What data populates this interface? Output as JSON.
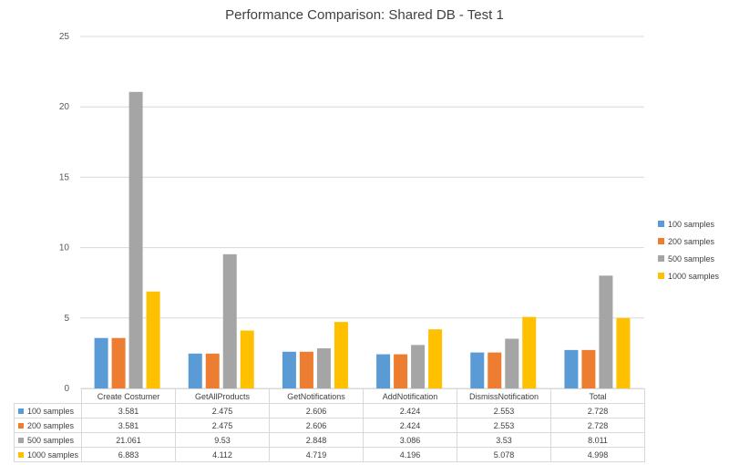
{
  "chart_data": {
    "type": "bar",
    "title": "Performance Comparison: Shared DB - Test 1",
    "categories": [
      "Create Costumer",
      "GetAllProducts",
      "GetNotifications",
      "AddNotification",
      "DismissNotification",
      "Total"
    ],
    "series": [
      {
        "name": "100 samples",
        "color": "#5b9bd5",
        "values": [
          3.581,
          2.475,
          2.606,
          2.424,
          2.553,
          2.728
        ],
        "labels": [
          "3.581",
          "2.475",
          "2.606",
          "2.424",
          "2.553",
          "2.728"
        ]
      },
      {
        "name": "200 samples",
        "color": "#ed7d31",
        "values": [
          3.581,
          2.475,
          2.606,
          2.424,
          2.553,
          2.728
        ],
        "labels": [
          "3.581",
          "2.475",
          "2.606",
          "2.424",
          "2.553",
          "2.728"
        ]
      },
      {
        "name": "500 samples",
        "color": "#a5a5a5",
        "values": [
          21.061,
          9.53,
          2.848,
          3.086,
          3.53,
          8.011
        ],
        "labels": [
          "21.061",
          "9.53",
          "2.848",
          "3.086",
          "3.53",
          "8.011"
        ]
      },
      {
        "name": "1000 samples",
        "color": "#ffc000",
        "values": [
          6.883,
          4.112,
          4.719,
          4.196,
          5.078,
          4.998
        ],
        "labels": [
          "6.883",
          "4.112",
          "4.719",
          "4.196",
          "5.078",
          "4.998"
        ]
      }
    ],
    "ylim": [
      0,
      25
    ],
    "yticks": [
      "0",
      "5",
      "10",
      "15",
      "20",
      "25"
    ],
    "grid": true,
    "legend_position": "right",
    "data_table": true
  }
}
